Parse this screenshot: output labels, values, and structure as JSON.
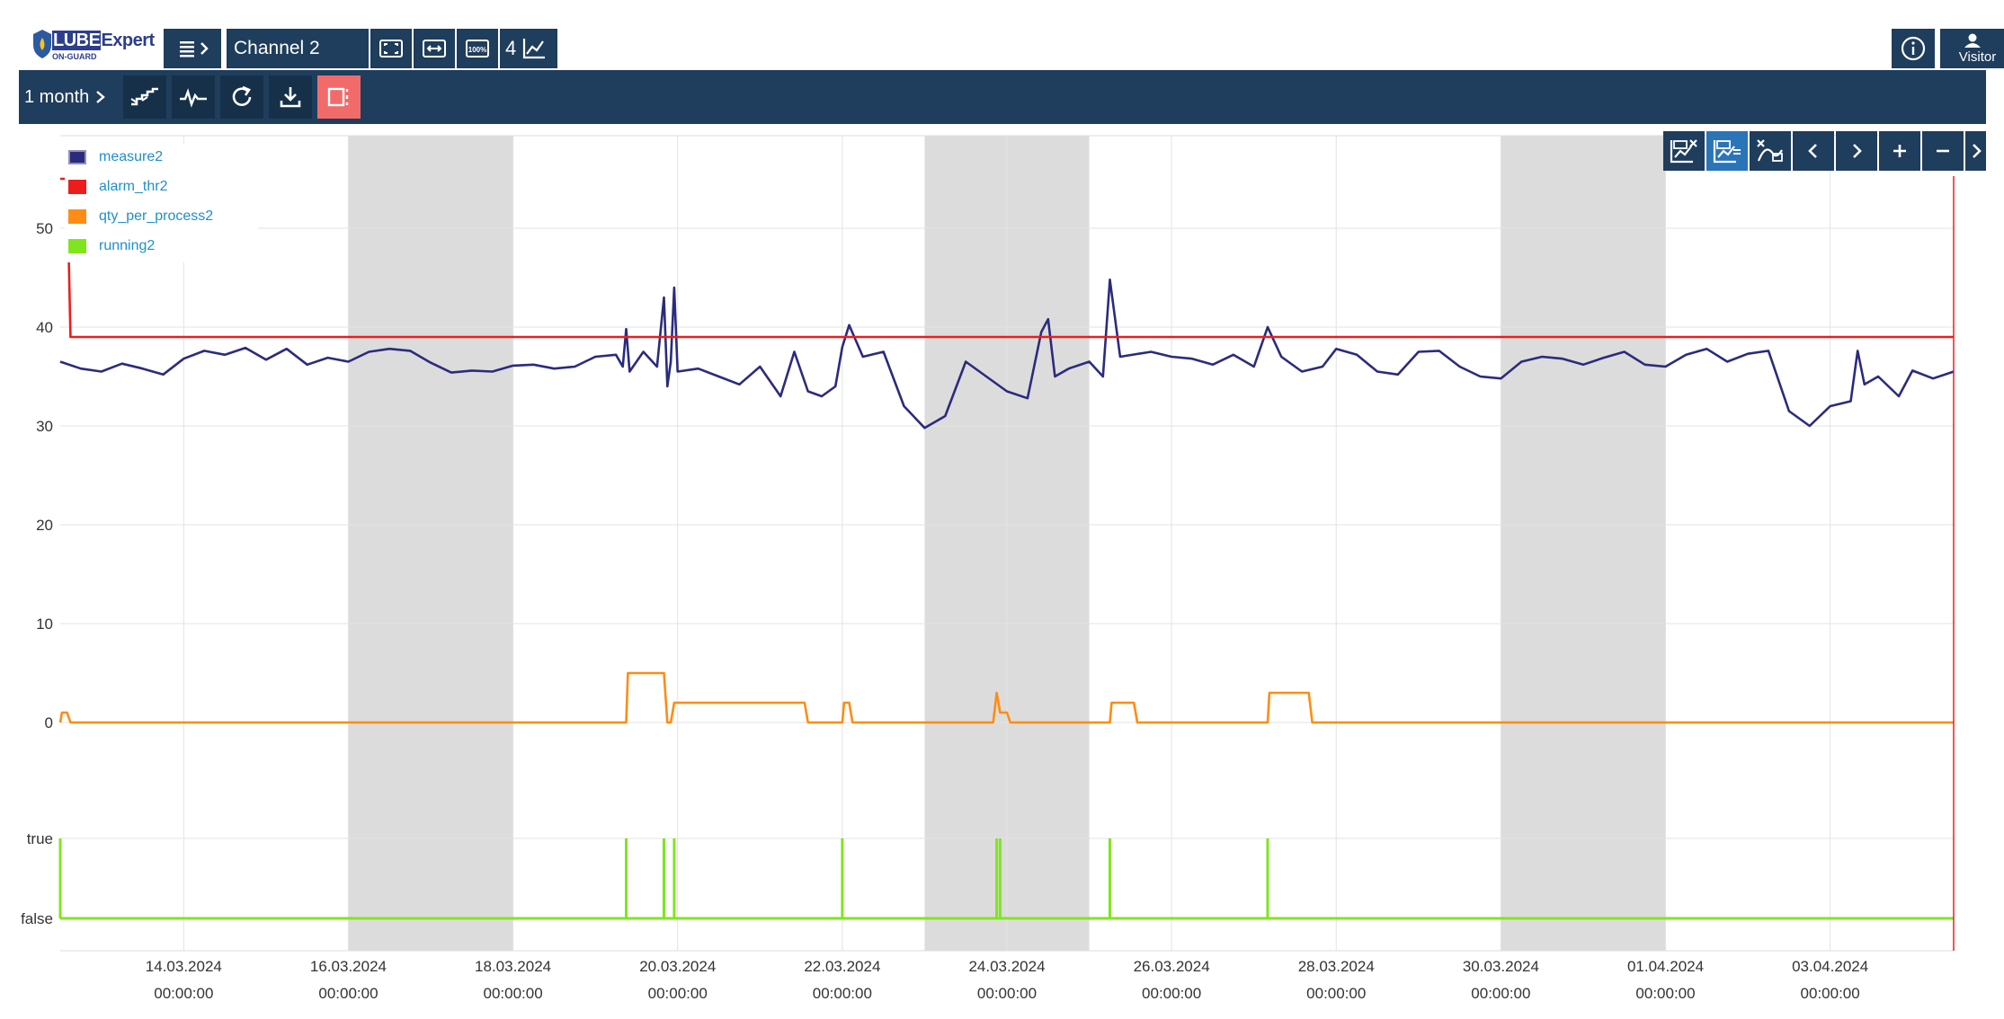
{
  "app": {
    "logo_text_part1": "LUBE",
    "logo_text_part2": "Expert",
    "logo_subtext": "ON-GUARD",
    "channel_name": "Channel 2",
    "chart_count": "4",
    "visitor_label": "Visitor"
  },
  "toolbar": {
    "period_label": "1 month"
  },
  "colors": {
    "header_bg": "#1f3d5c",
    "active_button": "#f26b6b",
    "weekend_band": "#dcdcdc",
    "measure2": "#2b2b7e",
    "alarm_thr2": "#ee1c1c",
    "qty_per_process2": "#ff8c14",
    "running2": "#7fe61e"
  },
  "legend": [
    {
      "name": "measure2",
      "color": "#2b2b7e"
    },
    {
      "name": "alarm_thr2",
      "color": "#ee1c1c"
    },
    {
      "name": "qty_per_process2",
      "color": "#ff8c14"
    },
    {
      "name": "running2",
      "color": "#7fe61e"
    }
  ],
  "chart_data": {
    "type": "line",
    "x_start": "12.03.2024 12:00",
    "x_end": "04.04.2024 12:00",
    "x_ticks": [
      {
        "date": "14.03.2024",
        "time": "00:00:00"
      },
      {
        "date": "16.03.2024",
        "time": "00:00:00"
      },
      {
        "date": "18.03.2024",
        "time": "00:00:00"
      },
      {
        "date": "20.03.2024",
        "time": "00:00:00"
      },
      {
        "date": "22.03.2024",
        "time": "00:00:00"
      },
      {
        "date": "24.03.2024",
        "time": "00:00:00"
      },
      {
        "date": "26.03.2024",
        "time": "00:00:00"
      },
      {
        "date": "28.03.2024",
        "time": "00:00:00"
      },
      {
        "date": "30.03.2024",
        "time": "00:00:00"
      },
      {
        "date": "01.04.2024",
        "time": "00:00:00"
      },
      {
        "date": "03.04.2024",
        "time": "00:00:00"
      }
    ],
    "y_ticks": [
      "50",
      "40",
      "30",
      "20",
      "10",
      "0"
    ],
    "y_range": [
      0,
      55
    ],
    "bool_ticks": [
      "true",
      "false"
    ],
    "weekend_bands": [
      [
        "16.03.2024 00:00",
        "18.03.2024 00:00"
      ],
      [
        "23.03.2024 00:00",
        "25.03.2024 00:00"
      ],
      [
        "30.03.2024 00:00",
        "01.04.2024 00:00"
      ]
    ],
    "grid": true,
    "legend_position": "top-left",
    "series": [
      {
        "name": "measure2",
        "color": "#2b2b7e",
        "points": [
          [
            "12.03 12:00",
            36.5
          ],
          [
            "12.03 18:00",
            35.8
          ],
          [
            "13.03 00:00",
            35.5
          ],
          [
            "13.03 06:00",
            36.3
          ],
          [
            "13.03 12:00",
            35.8
          ],
          [
            "13.03 18:00",
            35.2
          ],
          [
            "14.03 00:00",
            36.8
          ],
          [
            "14.03 06:00",
            37.6
          ],
          [
            "14.03 12:00",
            37.2
          ],
          [
            "14.03 18:00",
            37.9
          ],
          [
            "15.03 00:00",
            36.7
          ],
          [
            "15.03 06:00",
            37.8
          ],
          [
            "15.03 12:00",
            36.2
          ],
          [
            "15.03 18:00",
            36.9
          ],
          [
            "16.03 00:00",
            36.5
          ],
          [
            "16.03 06:00",
            37.5
          ],
          [
            "16.03 12:00",
            37.8
          ],
          [
            "16.03 18:00",
            37.6
          ],
          [
            "17.03 00:00",
            36.4
          ],
          [
            "17.03 06:00",
            35.4
          ],
          [
            "17.03 12:00",
            35.6
          ],
          [
            "17.03 18:00",
            35.5
          ],
          [
            "18.03 00:00",
            36.1
          ],
          [
            "18.03 06:00",
            36.2
          ],
          [
            "18.03 12:00",
            35.8
          ],
          [
            "18.03 18:00",
            36.0
          ],
          [
            "19.03 00:00",
            37.0
          ],
          [
            "19.03 06:00",
            37.2
          ],
          [
            "19.03 08:00",
            36.0
          ],
          [
            "19.03 09:00",
            39.8
          ],
          [
            "19.03 10:00",
            35.5
          ],
          [
            "19.03 14:00",
            37.5
          ],
          [
            "19.03 18:00",
            36.0
          ],
          [
            "19.03 20:00",
            43.0
          ],
          [
            "19.03 21:00",
            34.0
          ],
          [
            "19.03 22:00",
            36.5
          ],
          [
            "19.03 23:00",
            44.0
          ],
          [
            "20.03 00:00",
            35.5
          ],
          [
            "20.03 06:00",
            35.8
          ],
          [
            "20.03 12:00",
            35.0
          ],
          [
            "20.03 18:00",
            34.2
          ],
          [
            "21.03 00:00",
            36.0
          ],
          [
            "21.03 06:00",
            33.0
          ],
          [
            "21.03 10:00",
            37.5
          ],
          [
            "21.03 14:00",
            33.5
          ],
          [
            "21.03 18:00",
            33.0
          ],
          [
            "21.03 22:00",
            34.0
          ],
          [
            "22.03 00:00",
            38.0
          ],
          [
            "22.03 02:00",
            40.2
          ],
          [
            "22.03 06:00",
            37.0
          ],
          [
            "22.03 12:00",
            37.5
          ],
          [
            "22.03 18:00",
            32.0
          ],
          [
            "23.03 00:00",
            29.8
          ],
          [
            "23.03 06:00",
            31.0
          ],
          [
            "23.03 12:00",
            36.5
          ],
          [
            "23.03 18:00",
            35.0
          ],
          [
            "24.03 00:00",
            33.5
          ],
          [
            "24.03 06:00",
            32.8
          ],
          [
            "24.03 10:00",
            39.5
          ],
          [
            "24.03 12:00",
            40.8
          ],
          [
            "24.03 14:00",
            35.0
          ],
          [
            "24.03 18:00",
            35.8
          ],
          [
            "25.03 00:00",
            36.5
          ],
          [
            "25.03 04:00",
            35.0
          ],
          [
            "25.03 06:00",
            44.8
          ],
          [
            "25.03 09:00",
            37.0
          ],
          [
            "25.03 18:00",
            37.5
          ],
          [
            "26.03 00:00",
            37.0
          ],
          [
            "26.03 06:00",
            36.8
          ],
          [
            "26.03 12:00",
            36.2
          ],
          [
            "26.03 18:00",
            37.2
          ],
          [
            "27.03 00:00",
            36.0
          ],
          [
            "27.03 04:00",
            40.0
          ],
          [
            "27.03 08:00",
            37.0
          ],
          [
            "27.03 14:00",
            35.5
          ],
          [
            "27.03 20:00",
            36.0
          ],
          [
            "28.03 00:00",
            37.8
          ],
          [
            "28.03 06:00",
            37.2
          ],
          [
            "28.03 12:00",
            35.5
          ],
          [
            "28.03 18:00",
            35.2
          ],
          [
            "29.03 00:00",
            37.5
          ],
          [
            "29.03 06:00",
            37.6
          ],
          [
            "29.03 12:00",
            36.0
          ],
          [
            "29.03 18:00",
            35.0
          ],
          [
            "30.03 00:00",
            34.8
          ],
          [
            "30.03 06:00",
            36.5
          ],
          [
            "30.03 12:00",
            37.0
          ],
          [
            "30.03 18:00",
            36.8
          ],
          [
            "31.03 00:00",
            36.2
          ],
          [
            "31.03 06:00",
            36.9
          ],
          [
            "31.03 12:00",
            37.5
          ],
          [
            "31.03 18:00",
            36.2
          ],
          [
            "01.04 00:00",
            36.0
          ],
          [
            "01.04 06:00",
            37.2
          ],
          [
            "01.04 12:00",
            37.8
          ],
          [
            "01.04 18:00",
            36.5
          ],
          [
            "02.04 00:00",
            37.3
          ],
          [
            "02.04 06:00",
            37.6
          ],
          [
            "02.04 12:00",
            31.5
          ],
          [
            "02.04 18:00",
            30.0
          ],
          [
            "03.04 00:00",
            32.0
          ],
          [
            "03.04 06:00",
            32.5
          ],
          [
            "03.04 08:00",
            37.6
          ],
          [
            "03.04 10:00",
            34.2
          ],
          [
            "03.04 14:00",
            35.0
          ],
          [
            "03.04 20:00",
            33.0
          ],
          [
            "04.04 00:00",
            35.6
          ],
          [
            "04.04 06:00",
            34.8
          ],
          [
            "04.04 12:00",
            35.5
          ]
        ]
      },
      {
        "name": "alarm_thr2",
        "color": "#ee1c1c",
        "points": [
          [
            "12.03 12:00",
            55
          ],
          [
            "12.03 14:00",
            55
          ],
          [
            "12.03 15:00",
            39
          ],
          [
            "04.04 12:00",
            39
          ]
        ]
      },
      {
        "name": "qty_per_process2",
        "color": "#ff8c14",
        "points": [
          [
            "12.03 12:00",
            0
          ],
          [
            "12.03 12:30",
            1
          ],
          [
            "12.03 14:00",
            1
          ],
          [
            "12.03 15:00",
            0
          ],
          [
            "19.03 09:00",
            0
          ],
          [
            "19.03 09:30",
            5
          ],
          [
            "19.03 20:00",
            5
          ],
          [
            "19.03 21:00",
            0
          ],
          [
            "19.03 22:00",
            0
          ],
          [
            "19.03 23:00",
            2
          ],
          [
            "21.03 13:00",
            2
          ],
          [
            "21.03 14:00",
            0
          ],
          [
            "22.03 00:00",
            0
          ],
          [
            "22.03 00:30",
            2
          ],
          [
            "22.03 02:00",
            2
          ],
          [
            "22.03 03:00",
            0
          ],
          [
            "23.03 20:00",
            0
          ],
          [
            "23.03 21:00",
            3
          ],
          [
            "23.03 22:00",
            1
          ],
          [
            "24.03 00:00",
            1
          ],
          [
            "24.03 01:00",
            0
          ],
          [
            "25.03 06:00",
            0
          ],
          [
            "25.03 06:30",
            2
          ],
          [
            "25.03 13:00",
            2
          ],
          [
            "25.03 14:00",
            0
          ],
          [
            "27.03 04:00",
            0
          ],
          [
            "27.03 04:30",
            3
          ],
          [
            "27.03 16:00",
            3
          ],
          [
            "27.03 17:00",
            0
          ],
          [
            "04.04 12:00",
            0
          ]
        ]
      },
      {
        "name": "running2",
        "color": "#7fe61e",
        "pulses": [
          "12.03 12:00",
          "19.03 09:00",
          "19.03 20:00",
          "19.03 23:00",
          "22.03 00:00",
          "23.03 21:00",
          "23.03 22:00",
          "25.03 06:00",
          "27.03 04:00"
        ]
      }
    ]
  }
}
